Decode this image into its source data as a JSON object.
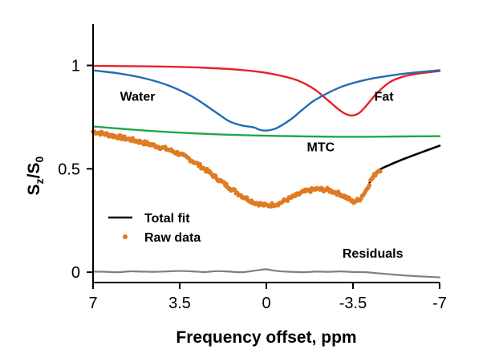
{
  "chart_data": {
    "type": "line",
    "title": "",
    "xlabel": "Frequency offset, ppm",
    "ylabel": {
      "main": "S",
      "sub1": "z",
      "slash": "/S",
      "sub2": "0"
    },
    "xlim": [
      7,
      -7
    ],
    "ylim": [
      -0.05,
      1.2
    ],
    "x_reversed": true,
    "x_ticks": [
      {
        "value": 7,
        "label": "7"
      },
      {
        "value": 3.5,
        "label": "3.5"
      },
      {
        "value": 0,
        "label": "0"
      },
      {
        "value": -3.5,
        "label": "-3.5"
      },
      {
        "value": -7,
        "label": "-7"
      }
    ],
    "y_ticks": [
      {
        "value": 0,
        "label": "0"
      },
      {
        "value": 0.5,
        "label": "0.5"
      },
      {
        "value": 1,
        "label": "1"
      }
    ],
    "series": [
      {
        "name": "Fat",
        "color": "#e8212a",
        "x": [
          7,
          6,
          5,
          4,
          3,
          2,
          1,
          0,
          -1,
          -1.5,
          -2,
          -2.5,
          -3,
          -3.25,
          -3.5,
          -3.75,
          -4,
          -4.5,
          -5,
          -5.5,
          -6,
          -7
        ],
        "y": [
          0.998,
          0.997,
          0.996,
          0.994,
          0.991,
          0.986,
          0.978,
          0.964,
          0.938,
          0.915,
          0.88,
          0.83,
          0.78,
          0.763,
          0.758,
          0.77,
          0.8,
          0.87,
          0.92,
          0.945,
          0.958,
          0.973
        ]
      },
      {
        "name": "Water",
        "color": "#1f6eb5",
        "x": [
          7,
          6,
          5,
          4,
          3,
          2,
          1.5,
          1,
          0.5,
          0.25,
          0,
          -0.25,
          -0.5,
          -1,
          -1.5,
          -2,
          -3,
          -4,
          -5,
          -6,
          -7
        ],
        "y": [
          0.976,
          0.962,
          0.94,
          0.905,
          0.85,
          0.77,
          0.73,
          0.71,
          0.7,
          0.688,
          0.685,
          0.69,
          0.702,
          0.74,
          0.79,
          0.835,
          0.895,
          0.93,
          0.951,
          0.966,
          0.977
        ]
      },
      {
        "name": "MTC",
        "color": "#1ea84a",
        "x": [
          7,
          6,
          5,
          4,
          3,
          2,
          1,
          0,
          -1,
          -2,
          -3,
          -4,
          -5,
          -6,
          -7
        ],
        "y": [
          0.705,
          0.695,
          0.686,
          0.678,
          0.672,
          0.667,
          0.663,
          0.66,
          0.658,
          0.656,
          0.655,
          0.655,
          0.656,
          0.657,
          0.658
        ]
      },
      {
        "name": "Total fit",
        "color": "#000000",
        "x": [
          7,
          6.5,
          6,
          5.5,
          5,
          4.5,
          4,
          3.5,
          3,
          2.5,
          2,
          1.5,
          1,
          0.5,
          0,
          -0.5,
          -1,
          -1.5,
          -2,
          -2.5,
          -3,
          -3.25,
          -3.5,
          -3.75,
          -4,
          -4.25,
          -4.5,
          -5,
          -5.5,
          -6,
          -6.5,
          -7
        ],
        "y": [
          0.68,
          0.668,
          0.655,
          0.642,
          0.628,
          0.612,
          0.595,
          0.572,
          0.54,
          0.5,
          0.455,
          0.41,
          0.37,
          0.338,
          0.322,
          0.332,
          0.36,
          0.388,
          0.402,
          0.398,
          0.377,
          0.36,
          0.34,
          0.35,
          0.39,
          0.45,
          0.49,
          0.52,
          0.545,
          0.568,
          0.59,
          0.612
        ]
      },
      {
        "name": "Residuals",
        "color": "#7f7f7f",
        "x": [
          7,
          6.5,
          6,
          5.5,
          5,
          4.5,
          4,
          3.5,
          3,
          2.5,
          2,
          1.5,
          1,
          0.5,
          0.2,
          0,
          -0.3,
          -0.6,
          -1,
          -1.5,
          -2,
          -2.5,
          -3,
          -3.5,
          -4,
          -4.5,
          -5,
          -5.5,
          -6,
          -6.5,
          -7
        ],
        "y": [
          0.003,
          0.002,
          0.0,
          0.004,
          0.003,
          0.002,
          0.004,
          0.006,
          0.004,
          0.001,
          0.005,
          0.003,
          0.0,
          0.007,
          0.012,
          0.014,
          0.008,
          0.004,
          0.002,
          0.0,
          0.003,
          0.002,
          0.004,
          0.001,
          0.0,
          -0.005,
          -0.01,
          -0.015,
          -0.019,
          -0.022,
          -0.025
        ]
      }
    ],
    "raw_data": {
      "name": "Raw data",
      "color": "#e07b22",
      "x_range": [
        7,
        -4.6
      ],
      "count": 240,
      "noise": 0.009
    },
    "annotations": [
      {
        "text": "Water",
        "x": 5.2,
        "y": 0.83
      },
      {
        "text": "Fat",
        "x": -4.75,
        "y": 0.83
      },
      {
        "text": "MTC",
        "x": -2.2,
        "y": 0.585
      },
      {
        "text": "Residuals",
        "x": -4.3,
        "y": 0.07
      }
    ],
    "legend": {
      "position": "bottom-left",
      "entries": [
        {
          "label": "Total fit",
          "kind": "line",
          "color": "#000000"
        },
        {
          "label": "Raw data",
          "kind": "dots",
          "color": "#e07b22"
        }
      ]
    }
  }
}
